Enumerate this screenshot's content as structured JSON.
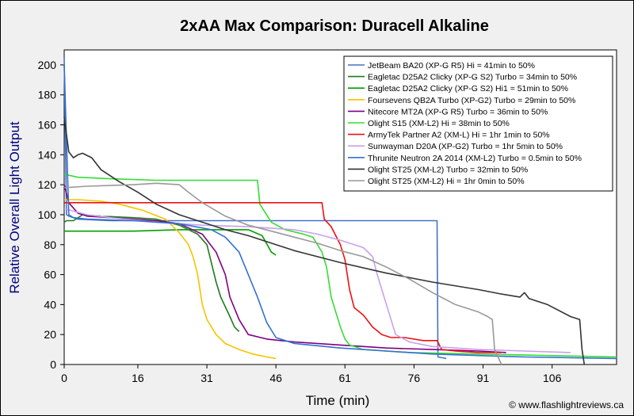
{
  "chart_data": {
    "type": "line",
    "title": "2xAA Max Comparison: Duracell Alkaline",
    "xlabel": "Time (min)",
    "ylabel": "Relative Overall Light Output",
    "xlim": [
      0,
      120
    ],
    "ylim": [
      0,
      210
    ],
    "x_ticks": [
      0,
      16,
      31,
      46,
      61,
      76,
      91,
      106
    ],
    "y_ticks": [
      0,
      20,
      40,
      60,
      80,
      100,
      120,
      140,
      160,
      180,
      200
    ],
    "grid": false,
    "legend_position": "top-right",
    "credit": "© www.flashlightreviews.ca",
    "series": [
      {
        "name": "JetBeam BA20 (XP-G R5) Hi = 41min to 50%",
        "color": "#4472c4",
        "points": [
          [
            0,
            205
          ],
          [
            0.5,
            100
          ],
          [
            1,
            99
          ],
          [
            3,
            97
          ],
          [
            10,
            96
          ],
          [
            30,
            96
          ],
          [
            50,
            96
          ],
          [
            70,
            96
          ],
          [
            81,
            96
          ],
          [
            81.2,
            5
          ],
          [
            83,
            4
          ]
        ]
      },
      {
        "name": "Eagletac D25A2 Clicky (XP-G S2) Turbo = 34min to 50%",
        "color": "#1f7a1f",
        "points": [
          [
            0,
            95
          ],
          [
            0.5,
            96
          ],
          [
            2,
            96
          ],
          [
            4,
            100
          ],
          [
            8,
            99
          ],
          [
            15,
            98
          ],
          [
            20,
            97
          ],
          [
            25,
            93
          ],
          [
            29,
            87
          ],
          [
            31,
            80
          ],
          [
            33,
            55
          ],
          [
            34,
            45
          ],
          [
            36,
            32
          ],
          [
            37,
            25
          ],
          [
            38,
            22
          ]
        ]
      },
      {
        "name": "Eagletac D25A2 Clicky (XP-G S2) Hi1 = 51min to 50%",
        "color": "#00a000",
        "points": [
          [
            0,
            89
          ],
          [
            5,
            89
          ],
          [
            15,
            89
          ],
          [
            25,
            90
          ],
          [
            35,
            90
          ],
          [
            40,
            90
          ],
          [
            43,
            86
          ],
          [
            45,
            75
          ],
          [
            46,
            73
          ]
        ]
      },
      {
        "name": "Foursevens QB2A Turbo (XP-G2) Turbo = 29min to 50%",
        "color": "#f5c400",
        "points": [
          [
            0,
            110
          ],
          [
            3,
            110
          ],
          [
            8,
            109
          ],
          [
            12,
            107
          ],
          [
            17,
            103
          ],
          [
            22,
            97
          ],
          [
            25,
            88
          ],
          [
            27,
            80
          ],
          [
            28,
            72
          ],
          [
            29,
            60
          ],
          [
            30,
            40
          ],
          [
            31,
            30
          ],
          [
            33,
            20
          ],
          [
            35,
            14
          ],
          [
            38,
            10
          ],
          [
            41,
            7
          ],
          [
            44,
            5
          ],
          [
            46,
            4
          ]
        ]
      },
      {
        "name": "Nitecore MT2A (XP-G R5) Turbo = 36min to 50%",
        "color": "#800080",
        "points": [
          [
            0,
            120
          ],
          [
            1,
            108
          ],
          [
            3,
            101
          ],
          [
            5,
            99
          ],
          [
            10,
            98
          ],
          [
            15,
            97
          ],
          [
            20,
            96
          ],
          [
            25,
            94
          ],
          [
            30,
            87
          ],
          [
            33,
            75
          ],
          [
            35,
            60
          ],
          [
            36,
            45
          ],
          [
            38,
            30
          ],
          [
            40,
            20
          ],
          [
            44,
            17
          ],
          [
            50,
            15
          ],
          [
            60,
            13
          ],
          [
            70,
            11
          ],
          [
            80,
            10
          ],
          [
            90,
            9
          ],
          [
            96,
            8
          ]
        ]
      },
      {
        "name": "Olight S15 (XM-L2) Hi = 38min to 50%",
        "color": "#33dd33",
        "points": [
          [
            0,
            127
          ],
          [
            3,
            125
          ],
          [
            10,
            124
          ],
          [
            20,
            123
          ],
          [
            30,
            123
          ],
          [
            40,
            123
          ],
          [
            42,
            123
          ],
          [
            42.5,
            107
          ],
          [
            45,
            95
          ],
          [
            48,
            90
          ],
          [
            52,
            87
          ],
          [
            54,
            85
          ],
          [
            56,
            75
          ],
          [
            57,
            65
          ],
          [
            58,
            45
          ],
          [
            59,
            35
          ],
          [
            60,
            25
          ],
          [
            61,
            17
          ],
          [
            62,
            13
          ],
          [
            65,
            10
          ],
          [
            75,
            8
          ],
          [
            90,
            7
          ],
          [
            105,
            6
          ],
          [
            120,
            5
          ]
        ]
      },
      {
        "name": "ArmyTek Partner A2 (XM-L) Hi = 1hr 1min to 50%",
        "color": "#ee1111",
        "points": [
          [
            0,
            108
          ],
          [
            10,
            108
          ],
          [
            20,
            108
          ],
          [
            30,
            108
          ],
          [
            40,
            108
          ],
          [
            50,
            108
          ],
          [
            56,
            108
          ],
          [
            56.5,
            97
          ],
          [
            58,
            92
          ],
          [
            60,
            80
          ],
          [
            61,
            70
          ],
          [
            62,
            50
          ],
          [
            63,
            38
          ],
          [
            65,
            33
          ],
          [
            67,
            25
          ],
          [
            69,
            20
          ],
          [
            71,
            18
          ],
          [
            74,
            18
          ],
          [
            78,
            16
          ],
          [
            81,
            16
          ],
          [
            82,
            10
          ],
          [
            85,
            9
          ],
          [
            90,
            8
          ],
          [
            95,
            8
          ]
        ]
      },
      {
        "name": "Sunwayman D20A (XP-G2) Turbo = 1hr 5min to 50%",
        "color": "#c8a0ec",
        "points": [
          [
            0,
            104
          ],
          [
            5,
            100
          ],
          [
            10,
            98
          ],
          [
            20,
            95
          ],
          [
            30,
            93
          ],
          [
            40,
            92
          ],
          [
            50,
            90
          ],
          [
            55,
            87
          ],
          [
            60,
            83
          ],
          [
            65,
            78
          ],
          [
            67,
            72
          ],
          [
            68,
            60
          ],
          [
            69,
            50
          ],
          [
            70,
            40
          ],
          [
            71,
            30
          ],
          [
            72,
            20
          ],
          [
            75,
            15
          ],
          [
            80,
            12
          ],
          [
            90,
            10
          ],
          [
            100,
            9
          ],
          [
            110,
            8
          ]
        ]
      },
      {
        "name": "Thrunite Neutron 2A 2014 (XM-L2) Turbo = 0.5min to 50%",
        "color": "#3370d0",
        "points": [
          [
            0,
            200
          ],
          [
            1,
            100
          ],
          [
            2,
            98
          ],
          [
            5,
            97
          ],
          [
            15,
            96
          ],
          [
            25,
            94
          ],
          [
            32,
            90
          ],
          [
            35,
            85
          ],
          [
            38,
            75
          ],
          [
            40,
            60
          ],
          [
            42,
            45
          ],
          [
            44,
            28
          ],
          [
            46,
            18
          ],
          [
            50,
            14
          ],
          [
            60,
            11
          ],
          [
            70,
            9
          ],
          [
            80,
            7
          ],
          [
            90,
            6
          ],
          [
            100,
            5
          ],
          [
            120,
            4
          ]
        ]
      },
      {
        "name": "Olight ST25 (XM-L2) Turbo = 32min to 50%",
        "color": "#333333",
        "points": [
          [
            0,
            165
          ],
          [
            1,
            142
          ],
          [
            2,
            138
          ],
          [
            3,
            140
          ],
          [
            4,
            141
          ],
          [
            6,
            138
          ],
          [
            8,
            130
          ],
          [
            12,
            122
          ],
          [
            16,
            115
          ],
          [
            20,
            107
          ],
          [
            25,
            100
          ],
          [
            30,
            95
          ],
          [
            35,
            90
          ],
          [
            40,
            86
          ],
          [
            45,
            81
          ],
          [
            50,
            76
          ],
          [
            60,
            68
          ],
          [
            70,
            61
          ],
          [
            80,
            55
          ],
          [
            90,
            50
          ],
          [
            95,
            47
          ],
          [
            99,
            45
          ],
          [
            100,
            48
          ],
          [
            101,
            44
          ],
          [
            105,
            40
          ],
          [
            110,
            32
          ],
          [
            112,
            30
          ],
          [
            112.5,
            10
          ],
          [
            113,
            0
          ]
        ]
      },
      {
        "name": "Olight ST25 (XM-L2) Hi = 1hr 0min to 50%",
        "color": "#999999",
        "points": [
          [
            0,
            118
          ],
          [
            5,
            119
          ],
          [
            15,
            120
          ],
          [
            20,
            121
          ],
          [
            25,
            120
          ],
          [
            27,
            115
          ],
          [
            30,
            108
          ],
          [
            35,
            99
          ],
          [
            40,
            93
          ],
          [
            45,
            89
          ],
          [
            50,
            85
          ],
          [
            55,
            81
          ],
          [
            60,
            76
          ],
          [
            65,
            72
          ],
          [
            70,
            65
          ],
          [
            75,
            57
          ],
          [
            80,
            48
          ],
          [
            85,
            40
          ],
          [
            90,
            35
          ],
          [
            92,
            32
          ],
          [
            93,
            30
          ],
          [
            93.5,
            10
          ],
          [
            95,
            0
          ]
        ]
      }
    ]
  }
}
